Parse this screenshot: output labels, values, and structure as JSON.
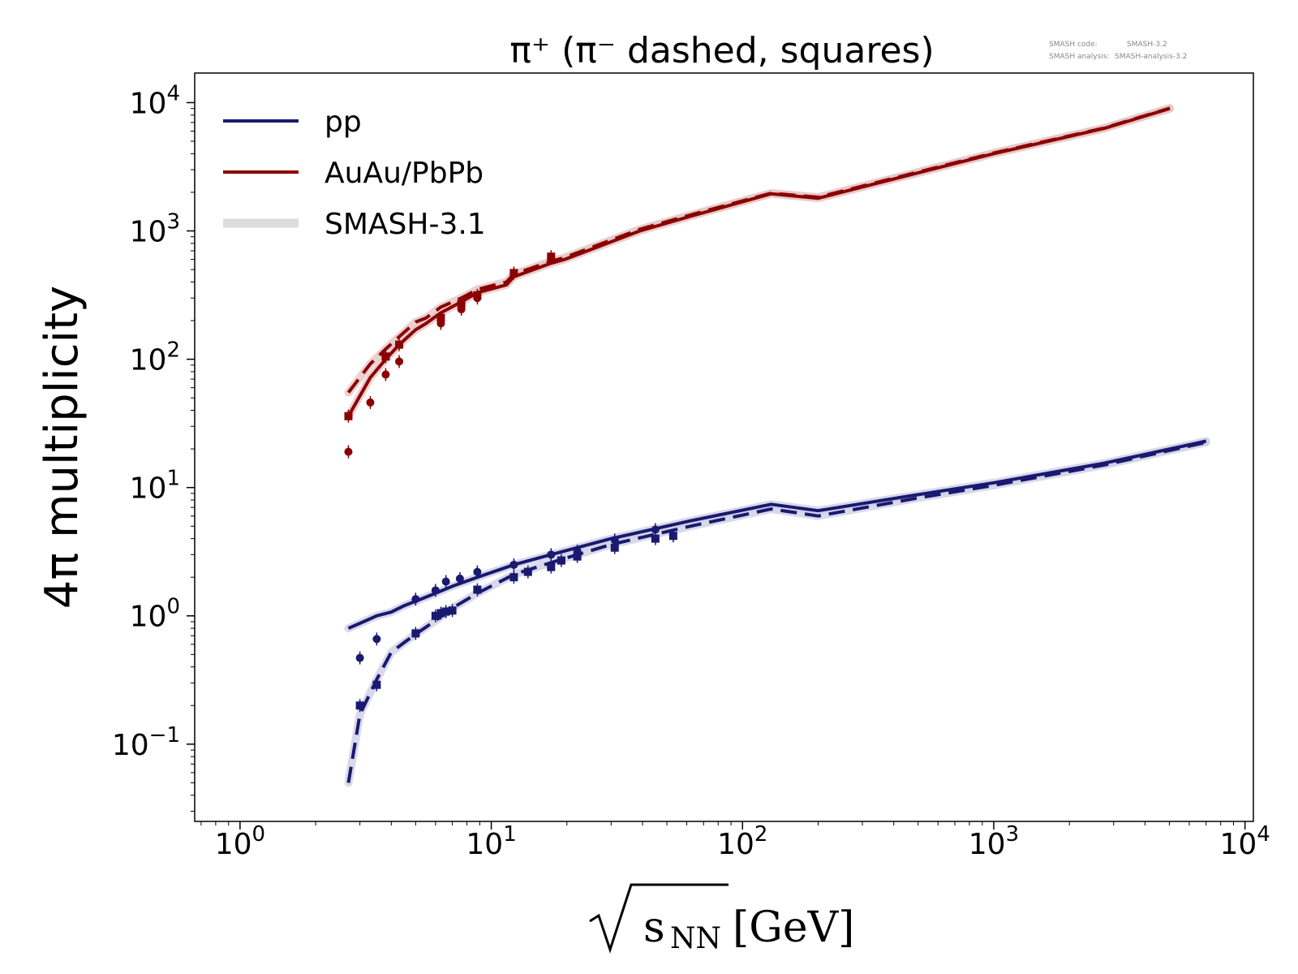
{
  "chart_data": {
    "type": "line",
    "title": "π⁺ (π⁻ dashed, squares)",
    "ylabel": "4π multiplicity",
    "xlabel_main": "s",
    "xlabel_sub": "NN",
    "xlabel_unit": "[GeV]",
    "xscale": "log",
    "yscale": "log",
    "xlim": [
      0.66,
      10800
    ],
    "ylim": [
      0.025,
      17000
    ],
    "x_ticks": [
      {
        "value": 1,
        "base": "10",
        "exp": "0"
      },
      {
        "value": 10,
        "base": "10",
        "exp": "1"
      },
      {
        "value": 100,
        "base": "10",
        "exp": "2"
      },
      {
        "value": 1000,
        "base": "10",
        "exp": "3"
      },
      {
        "value": 10000,
        "base": "10",
        "exp": "4"
      }
    ],
    "y_ticks": [
      {
        "value": 0.1,
        "base": "10",
        "exp": "−1"
      },
      {
        "value": 1,
        "base": "10",
        "exp": "0"
      },
      {
        "value": 10,
        "base": "10",
        "exp": "1"
      },
      {
        "value": 100,
        "base": "10",
        "exp": "2"
      },
      {
        "value": 1000,
        "base": "10",
        "exp": "3"
      },
      {
        "value": 10000,
        "base": "10",
        "exp": "4"
      }
    ],
    "grid": false,
    "legend_position": "top-left",
    "legend": [
      {
        "label": "pp",
        "color": "#191970",
        "style": "line"
      },
      {
        "label": "AuAu/PbPb",
        "color": "#8b0000",
        "style": "line"
      },
      {
        "label": "SMASH-3.1",
        "color": "#dcdcdc",
        "style": "band"
      }
    ],
    "watermark": {
      "code_label": "SMASH code:",
      "code_value": "SMASH-3.2",
      "analysis_label": "SMASH analysis:",
      "analysis_value": "SMASH-analysis-3.2"
    },
    "colors": {
      "pp": "#191970",
      "aa": "#8b0000",
      "band": "#dcdcdc"
    },
    "series": [
      {
        "name": "pp π⁺",
        "system": "pp",
        "style": "solid",
        "x": [
          2.7,
          3.1,
          3.5,
          4.0,
          4.5,
          5.0,
          6.0,
          7.0,
          8.8,
          12.3,
          17.3,
          30,
          62,
          130,
          200,
          500,
          1000,
          2760,
          7000
        ],
        "y": [
          0.8,
          0.9,
          1.0,
          1.07,
          1.2,
          1.3,
          1.5,
          1.7,
          2.0,
          2.5,
          3.0,
          4.0,
          5.5,
          7.4,
          6.6,
          8.8,
          10.9,
          15.5,
          23
        ]
      },
      {
        "name": "pp π⁻",
        "system": "pp",
        "style": "dashed",
        "x": [
          2.7,
          3.0,
          3.5,
          4.0,
          4.5,
          5.0,
          6.0,
          7.0,
          8.8,
          12.3,
          17.3,
          30,
          62,
          130,
          200,
          500,
          1000,
          2760,
          7000
        ],
        "y": [
          0.05,
          0.17,
          0.32,
          0.52,
          0.62,
          0.72,
          0.92,
          1.15,
          1.5,
          2.1,
          2.6,
          3.6,
          5.0,
          6.8,
          6.0,
          8.3,
          10.4,
          15.0,
          22.5
        ]
      },
      {
        "name": "AuAu/PbPb π⁺",
        "system": "aa",
        "style": "solid",
        "x": [
          2.7,
          3.3,
          3.8,
          4.3,
          5.0,
          5.5,
          6.3,
          7.6,
          8.8,
          11.5,
          12.3,
          17.3,
          19.6,
          39,
          62,
          130,
          200,
          1000,
          2760,
          5020
        ],
        "y": [
          36,
          72,
          100,
          130,
          170,
          190,
          230,
          280,
          330,
          380,
          440,
          560,
          600,
          1000,
          1300,
          1950,
          1800,
          4000,
          6300,
          9000
        ]
      },
      {
        "name": "AuAu/PbPb π⁻",
        "system": "aa",
        "style": "dashed",
        "x": [
          2.7,
          3.3,
          3.8,
          4.3,
          5.0,
          5.5,
          6.3,
          7.6,
          8.8,
          11.5,
          12.3,
          17.3,
          19.6,
          39,
          62,
          130,
          200,
          1000,
          2760,
          5020
        ],
        "y": [
          55,
          92,
          120,
          150,
          195,
          210,
          255,
          300,
          350,
          400,
          460,
          580,
          620,
          1030,
          1330,
          1970,
          1830,
          4050,
          6350,
          9050
        ]
      }
    ],
    "markers": [
      {
        "name": "pp π⁺ data",
        "system": "pp",
        "shape": "circle",
        "x": [
          3.0,
          3.5,
          5.0,
          6.0,
          6.6,
          7.5,
          8.8,
          12.3,
          17.3,
          22,
          31,
          45
        ],
        "y": [
          0.47,
          0.66,
          1.35,
          1.58,
          1.85,
          1.95,
          2.2,
          2.5,
          3.0,
          3.2,
          3.9,
          4.7
        ]
      },
      {
        "name": "pp π⁻ data",
        "system": "pp",
        "shape": "square",
        "x": [
          3.0,
          3.5,
          5.0,
          6.0,
          6.3,
          6.6,
          7.0,
          8.8,
          12.3,
          14,
          17.3,
          19,
          22,
          31,
          45,
          53
        ],
        "y": [
          0.2,
          0.29,
          0.73,
          1.0,
          1.05,
          1.08,
          1.1,
          1.6,
          2.0,
          2.2,
          2.4,
          2.7,
          2.9,
          3.4,
          4.0,
          4.2
        ]
      },
      {
        "name": "AuAu/PbPb π⁺ data",
        "system": "aa",
        "shape": "circle",
        "x": [
          2.7,
          3.3,
          3.8,
          4.3,
          6.3,
          7.6,
          8.8
        ],
        "y": [
          19,
          46,
          76,
          96,
          190,
          245,
          300
        ]
      },
      {
        "name": "AuAu/PbPb π⁻ data",
        "system": "aa",
        "shape": "square",
        "x": [
          2.7,
          3.8,
          4.3,
          6.3,
          7.6,
          8.8,
          12.3,
          17.3
        ],
        "y": [
          36,
          105,
          130,
          210,
          270,
          315,
          470,
          630
        ]
      }
    ]
  }
}
